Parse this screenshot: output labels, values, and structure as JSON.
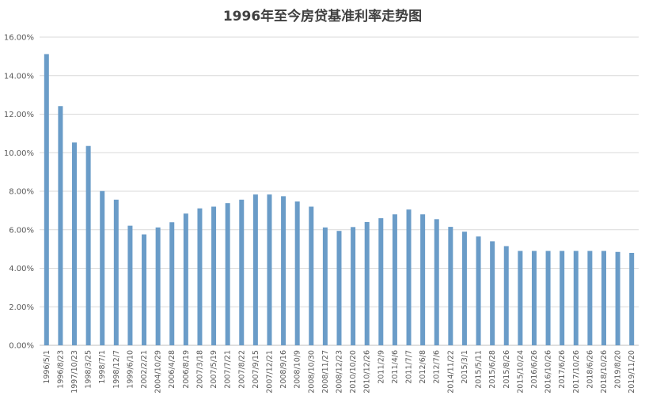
{
  "chart_data": {
    "type": "bar",
    "title": "1996年至今房贷基准利率走势图",
    "xlabel": "",
    "ylabel": "",
    "ylim": [
      0,
      16
    ],
    "yticks": [
      "0.00%",
      "2.00%",
      "4.00%",
      "6.00%",
      "8.00%",
      "10.00%",
      "12.00%",
      "14.00%",
      "16.00%"
    ],
    "ytick_values": [
      0,
      2,
      4,
      6,
      8,
      10,
      12,
      14,
      16
    ],
    "grid": true,
    "bar_color": "#6a9cc8",
    "categories": [
      "1996/5/1",
      "1996/8/23",
      "1997/10/23",
      "1998/3/25",
      "1998/7/1",
      "1998/12/7",
      "1999/6/10",
      "2002/2/21",
      "2004/10/29",
      "2006/4/28",
      "2006/8/19",
      "2007/3/18",
      "2007/5/19",
      "2007/7/21",
      "2007/8/22",
      "2007/9/15",
      "2007/12/21",
      "2008/9/16",
      "2008/10/9",
      "2008/10/30",
      "2008/11/27",
      "2008/12/23",
      "2010/10/20",
      "2010/12/26",
      "2011/2/9",
      "2011/4/6",
      "2011/7/7",
      "2012/6/8",
      "2012/7/6",
      "2014/11/22",
      "2015/3/1",
      "2015/5/11",
      "2015/6/28",
      "2015/8/26",
      "2015/10/24",
      "2016/6/26",
      "2016/10/26",
      "2017/6/26",
      "2017/10/26",
      "2018/6/26",
      "2018/10/26",
      "2019/8/20",
      "2019/11/20"
    ],
    "values": [
      15.12,
      12.42,
      10.53,
      10.35,
      8.01,
      7.56,
      6.21,
      5.76,
      6.12,
      6.39,
      6.84,
      7.11,
      7.2,
      7.38,
      7.56,
      7.83,
      7.83,
      7.74,
      7.47,
      7.2,
      6.12,
      5.94,
      6.14,
      6.4,
      6.6,
      6.8,
      7.05,
      6.8,
      6.55,
      6.15,
      5.9,
      5.65,
      5.4,
      5.15,
      4.9,
      4.9,
      4.9,
      4.9,
      4.9,
      4.9,
      4.9,
      4.85,
      4.8
    ]
  }
}
